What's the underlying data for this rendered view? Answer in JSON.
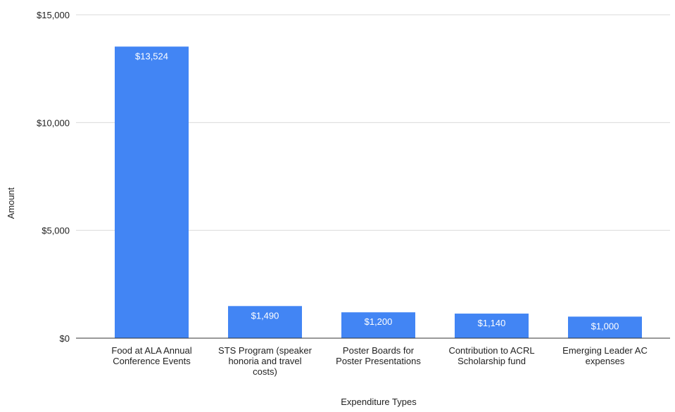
{
  "chart_data": {
    "type": "bar",
    "title": "",
    "xlabel": "Expenditure Types",
    "ylabel": "Amount",
    "categories": [
      [
        "Food at ALA Annual",
        "Conference Events"
      ],
      [
        "STS Program (speaker",
        "honoria and travel",
        "costs)"
      ],
      [
        "Poster Boards for",
        "Poster Presentations"
      ],
      [
        "Contribution to ACRL",
        "Scholarship fund"
      ],
      [
        "Emerging Leader AC",
        "expenses"
      ]
    ],
    "values": [
      13524,
      1490,
      1200,
      1140,
      1000
    ],
    "data_labels": [
      "$13,524",
      "$1,490",
      "$1,200",
      "$1,140",
      "$1,000"
    ],
    "y_ticks": [
      0,
      5000,
      10000,
      15000
    ],
    "y_tick_labels": [
      "$0",
      "$5,000",
      "$10,000",
      "$15,000"
    ],
    "ylim": [
      0,
      15000
    ],
    "grid": true,
    "legend": "none",
    "colors": {
      "bar": "#4285f4",
      "grid": "#d9d9d9",
      "axis": "#333333",
      "text": "#222222",
      "data_label": "#ffffff"
    }
  }
}
